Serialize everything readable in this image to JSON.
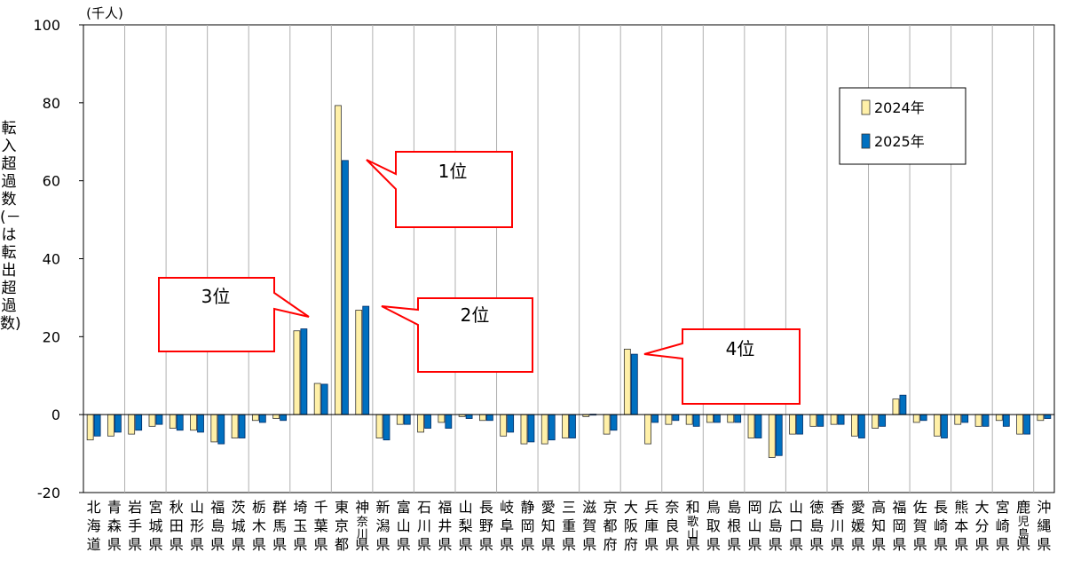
{
  "chart_data": {
    "type": "bar",
    "unit_label": "(千人)",
    "ylabel": "転入超過数(－は転出超過数)",
    "ylim": [
      -20,
      100
    ],
    "yticks": [
      -20,
      0,
      20,
      40,
      60,
      80,
      100
    ],
    "categories": [
      "北海道",
      "青森県",
      "岩手県",
      "宮城県",
      "秋田県",
      "山形県",
      "福島県",
      "茨城県",
      "栃木県",
      "群馬県",
      "埼玉県",
      "千葉県",
      "東京都",
      "神奈川県",
      "新潟県",
      "富山県",
      "石川県",
      "福井県",
      "山梨県",
      "長野県",
      "岐阜県",
      "静岡県",
      "愛知県",
      "三重県",
      "滋賀県",
      "京都府",
      "大阪府",
      "兵庫県",
      "奈良県",
      "和歌山県",
      "鳥取県",
      "島根県",
      "岡山県",
      "広島県",
      "山口県",
      "徳島県",
      "香川県",
      "愛媛県",
      "高知県",
      "福岡県",
      "佐賀県",
      "長崎県",
      "熊本県",
      "大分県",
      "宮崎県",
      "鹿児島県",
      "沖縄県"
    ],
    "series": [
      {
        "name": "2024年",
        "color": "#fff0a8",
        "values": [
          -6.5,
          -5.5,
          -5.0,
          -3.0,
          -3.5,
          -4.0,
          -7.0,
          -6.0,
          -1.5,
          -1.0,
          21.5,
          8.0,
          79.3,
          26.8,
          -6.0,
          -2.5,
          -4.5,
          -2.0,
          -0.5,
          -1.5,
          -5.5,
          -7.5,
          -7.5,
          -6.0,
          -0.5,
          -5.0,
          16.8,
          -7.5,
          -2.5,
          -2.5,
          -2.0,
          -2.0,
          -6.0,
          -11.0,
          -5.0,
          -3.0,
          -2.5,
          -5.5,
          -3.5,
          4.0,
          -2.0,
          -5.5,
          -2.5,
          -3.0,
          -1.5,
          -5.0,
          -1.5
        ]
      },
      {
        "name": "2025年",
        "color": "#0070c0",
        "values": [
          -5.5,
          -4.5,
          -4.0,
          -2.5,
          -4.0,
          -4.5,
          -7.5,
          -6.0,
          -2.0,
          -1.5,
          22.0,
          7.8,
          65.2,
          27.8,
          -6.5,
          -2.5,
          -3.5,
          -3.5,
          -1.0,
          -1.5,
          -4.5,
          -7.0,
          -6.5,
          -6.0,
          0.1,
          -4.0,
          15.5,
          -2.0,
          -1.5,
          -3.0,
          -2.0,
          -2.0,
          -6.0,
          -10.5,
          -5.0,
          -3.0,
          -2.5,
          -6.0,
          -3.0,
          5.0,
          -1.5,
          -6.0,
          -2.0,
          -3.0,
          -3.0,
          -5.0,
          -1.0
        ]
      }
    ],
    "legend": {
      "items": [
        "2024年",
        "2025年"
      ],
      "placement": "top-right"
    },
    "annotations": [
      {
        "text": "1位",
        "target": "東京都",
        "series": "2025年"
      },
      {
        "text": "2位",
        "target": "神奈川県",
        "series": "2025年"
      },
      {
        "text": "3位",
        "target": "埼玉県",
        "series": "2025年"
      },
      {
        "text": "4位",
        "target": "大阪府",
        "series": "2025年"
      }
    ],
    "grid": {
      "vertical": true,
      "horizontal": false
    },
    "annotation_color": "#ff0000"
  }
}
